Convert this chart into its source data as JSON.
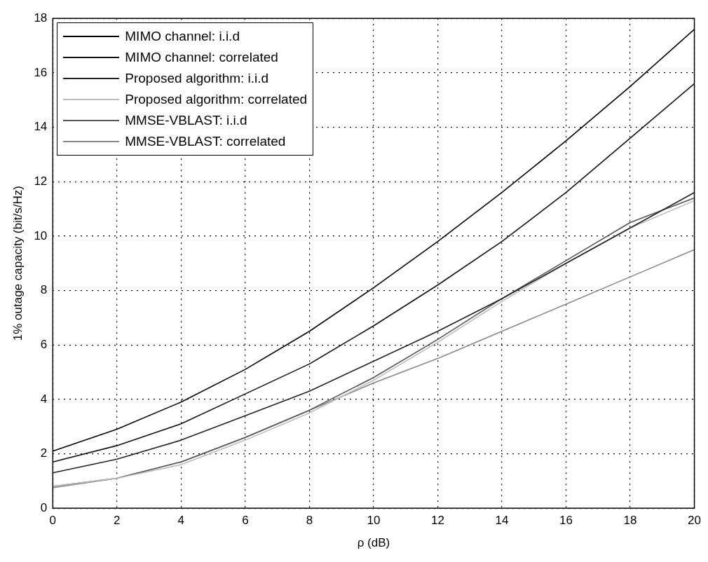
{
  "chart_data": {
    "type": "line",
    "xlabel": "ρ (dB)",
    "ylabel": "1% outage capacity (bit/s/Hz)",
    "x": [
      0,
      2,
      4,
      6,
      8,
      10,
      12,
      14,
      16,
      18,
      20
    ],
    "series": [
      {
        "name": "MIMO channel: i.i.d",
        "color": "#000000",
        "values": [
          2.1,
          2.9,
          3.9,
          5.1,
          6.5,
          8.1,
          9.8,
          11.6,
          13.5,
          15.5,
          17.6
        ]
      },
      {
        "name": "MIMO channel: correlated",
        "color": "#111111",
        "values": [
          1.7,
          2.3,
          3.1,
          4.2,
          5.3,
          6.7,
          8.2,
          9.8,
          11.6,
          13.6,
          15.6
        ]
      },
      {
        "name": "Proposed algorithm: i.i.d",
        "color": "#222222",
        "values": [
          1.3,
          1.8,
          2.5,
          3.4,
          4.3,
          5.4,
          6.5,
          7.7,
          9.0,
          10.3,
          11.6
        ]
      },
      {
        "name": "Proposed algorithm: correlated",
        "color": "#bbbbbb",
        "values": [
          0.8,
          1.1,
          1.6,
          2.5,
          3.5,
          4.7,
          6.1,
          7.6,
          9.0,
          10.3,
          11.3
        ]
      },
      {
        "name": "MMSE-VBLAST: i.i.d",
        "color": "#555555",
        "values": [
          0.8,
          1.1,
          1.7,
          2.6,
          3.6,
          4.8,
          6.2,
          7.7,
          9.1,
          10.5,
          11.4
        ]
      },
      {
        "name": "MMSE-VBLAST: correlated",
        "color": "#888888",
        "values": [
          0.75,
          1.1,
          1.7,
          2.6,
          3.6,
          4.6,
          5.5,
          6.5,
          7.5,
          8.5,
          9.5
        ]
      }
    ],
    "xlim": [
      0,
      20
    ],
    "xticks": [
      0,
      2,
      4,
      6,
      8,
      10,
      12,
      14,
      16,
      18,
      20
    ],
    "ylim": [
      0,
      18
    ],
    "yticks": [
      0,
      2,
      4,
      6,
      8,
      10,
      12,
      14,
      16,
      18
    ],
    "grid": true,
    "legend": "top left",
    "marker": "none",
    "line_style": "solid"
  }
}
